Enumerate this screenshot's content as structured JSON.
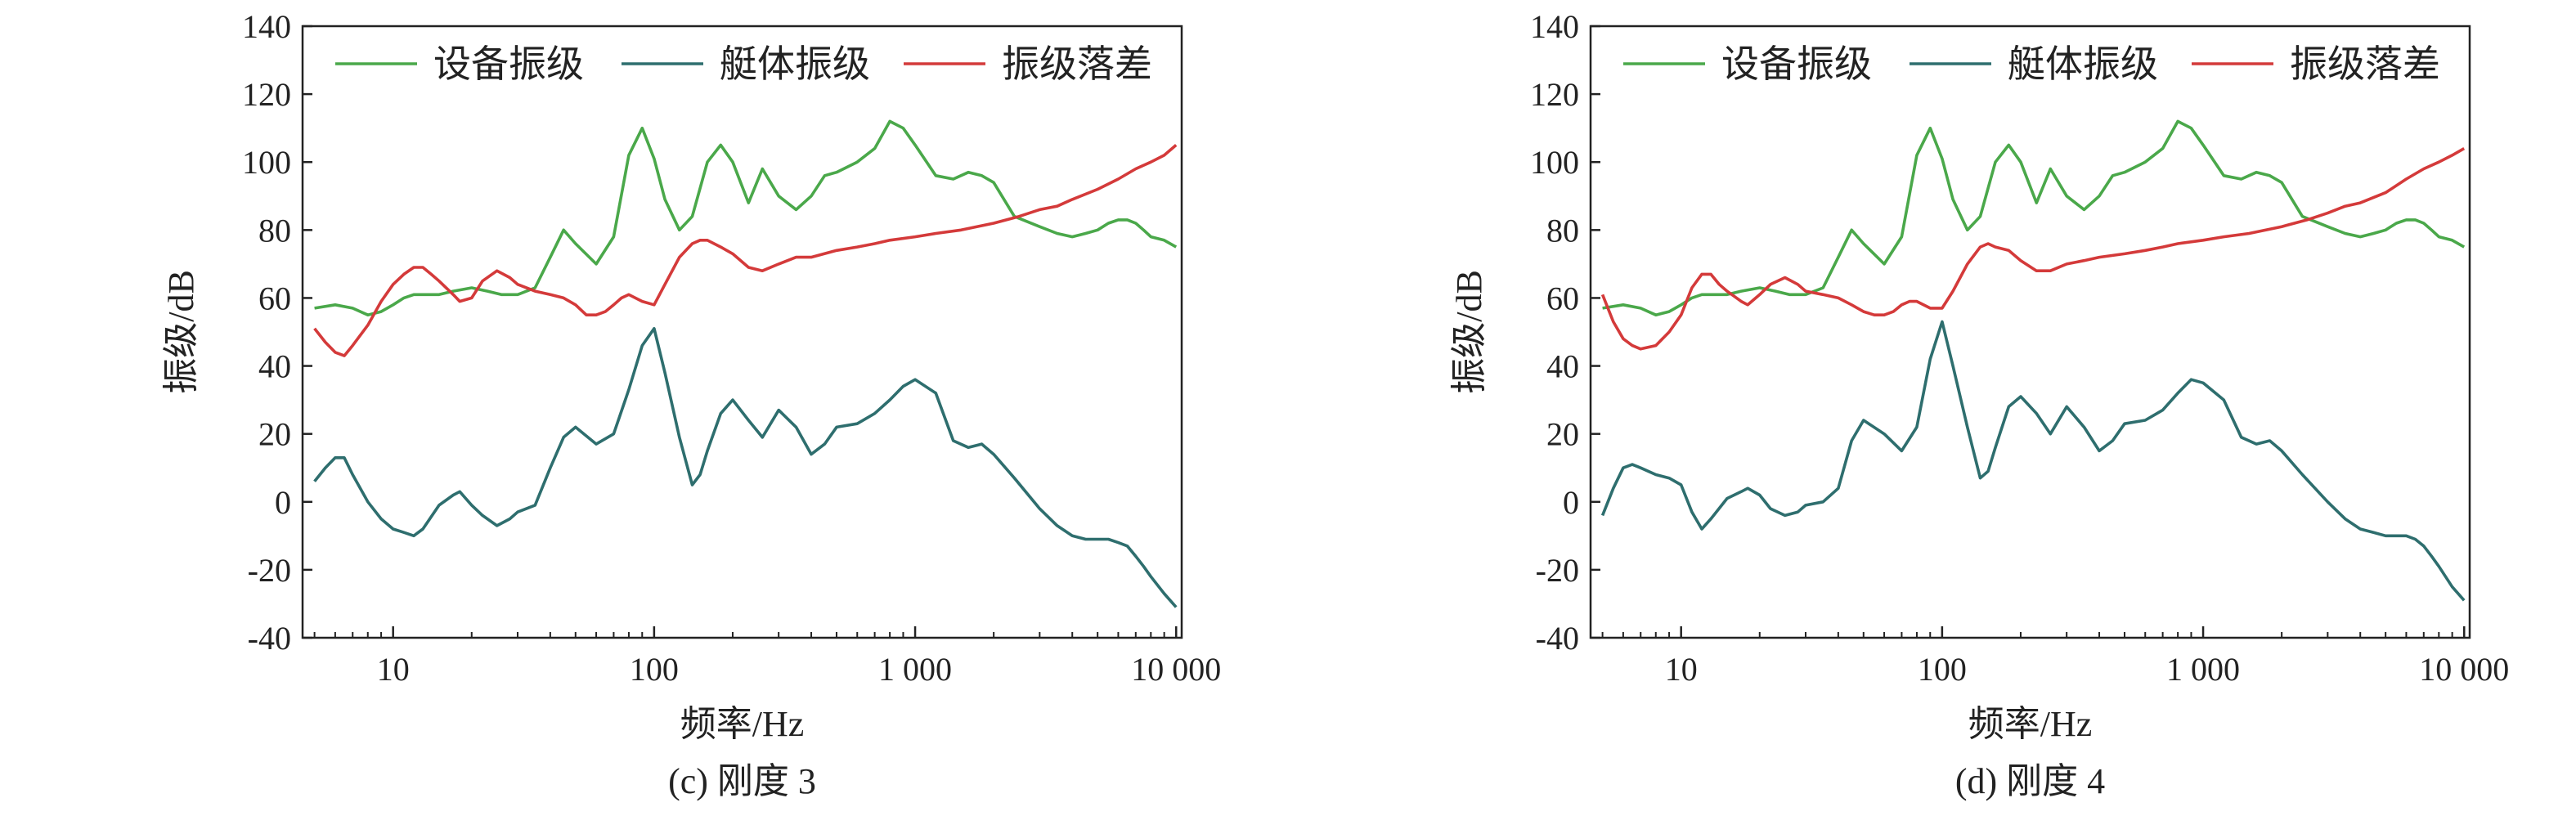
{
  "colors": {
    "equipment": "#4aa84a",
    "hull": "#2e6e6e",
    "drop": "#d43a3a",
    "axis": "#222222"
  },
  "chart_data": [
    {
      "type": "line",
      "caption": "(c) 刚度 3",
      "xlabel": "频率/Hz",
      "ylabel": "振级/dB",
      "xscale": "log",
      "xlim": [
        4.5,
        10500
      ],
      "ylim": [
        -40,
        140
      ],
      "xticks": [
        10,
        100,
        1000,
        10000
      ],
      "xtick_labels": [
        "10",
        "100",
        "1 000",
        "10 000"
      ],
      "yticks": [
        -40,
        -20,
        0,
        20,
        40,
        60,
        80,
        100,
        120,
        140
      ],
      "legend": {
        "position": "top",
        "entries": [
          "设备振级",
          "艇体振级",
          "振级落差"
        ]
      },
      "series": [
        {
          "name": "设备振级",
          "color_key": "equipment",
          "x": [
            5,
            6,
            7,
            8,
            9,
            10,
            11,
            12,
            13,
            15,
            17,
            20,
            23,
            26,
            30,
            35,
            40,
            45,
            50,
            60,
            70,
            80,
            90,
            100,
            110,
            125,
            140,
            160,
            180,
            200,
            230,
            260,
            300,
            350,
            400,
            450,
            500,
            600,
            700,
            800,
            900,
            1000,
            1200,
            1400,
            1600,
            1800,
            2000,
            2400,
            3000,
            3500,
            4000,
            4500,
            5000,
            5500,
            6000,
            6500,
            7000,
            7500,
            8000,
            9000,
            10000
          ],
          "y": [
            57,
            58,
            57,
            55,
            56,
            58,
            60,
            61,
            61,
            61,
            62,
            63,
            62,
            61,
            61,
            63,
            72,
            80,
            76,
            70,
            78,
            102,
            110,
            101,
            89,
            80,
            84,
            100,
            105,
            100,
            88,
            98,
            90,
            86,
            90,
            96,
            97,
            100,
            104,
            112,
            110,
            105,
            96,
            95,
            97,
            96,
            94,
            84,
            81,
            79,
            78,
            79,
            80,
            82,
            83,
            83,
            82,
            80,
            78,
            77,
            75
          ]
        },
        {
          "name": "艇体振级",
          "color_key": "hull",
          "x": [
            5,
            5.5,
            6,
            6.5,
            7,
            8,
            9,
            10,
            11,
            12,
            13,
            15,
            17,
            18,
            20,
            22,
            25,
            28,
            30,
            35,
            40,
            45,
            50,
            60,
            70,
            80,
            90,
            100,
            110,
            125,
            140,
            150,
            160,
            180,
            200,
            230,
            260,
            300,
            350,
            400,
            450,
            500,
            600,
            700,
            800,
            900,
            1000,
            1200,
            1400,
            1600,
            1800,
            2000,
            2400,
            3000,
            3500,
            4000,
            4500,
            5000,
            5500,
            6000,
            6500,
            7000,
            7500,
            8000,
            9000,
            10000
          ],
          "y": [
            6,
            10,
            13,
            13,
            8,
            0,
            -5,
            -8,
            -9,
            -10,
            -8,
            -1,
            2,
            3,
            -1,
            -4,
            -7,
            -5,
            -3,
            -1,
            10,
            19,
            22,
            17,
            20,
            33,
            46,
            51,
            38,
            19,
            5,
            8,
            15,
            26,
            30,
            24,
            19,
            27,
            22,
            14,
            17,
            22,
            23,
            26,
            30,
            34,
            36,
            32,
            18,
            16,
            17,
            14,
            7,
            -2,
            -7,
            -10,
            -11,
            -11,
            -11,
            -12,
            -13,
            -16,
            -19,
            -22,
            -27,
            -31
          ]
        },
        {
          "name": "振级落差",
          "color_key": "drop",
          "x": [
            5,
            5.5,
            6,
            6.5,
            7,
            8,
            9,
            10,
            11,
            12,
            13,
            14,
            15,
            17,
            18,
            20,
            22,
            25,
            28,
            30,
            35,
            40,
            45,
            50,
            55,
            60,
            65,
            70,
            75,
            80,
            90,
            100,
            110,
            125,
            140,
            150,
            160,
            180,
            200,
            230,
            260,
            300,
            350,
            400,
            500,
            600,
            700,
            800,
            1000,
            1200,
            1500,
            2000,
            2500,
            3000,
            3500,
            4000,
            5000,
            6000,
            7000,
            8000,
            9000,
            10000
          ],
          "y": [
            51,
            47,
            44,
            43,
            46,
            52,
            59,
            64,
            67,
            69,
            69,
            67,
            65,
            61,
            59,
            60,
            65,
            68,
            66,
            64,
            62,
            61,
            60,
            58,
            55,
            55,
            56,
            58,
            60,
            61,
            59,
            58,
            64,
            72,
            76,
            77,
            77,
            75,
            73,
            69,
            68,
            70,
            72,
            72,
            74,
            75,
            76,
            77,
            78,
            79,
            80,
            82,
            84,
            86,
            87,
            89,
            92,
            95,
            98,
            100,
            102,
            105
          ]
        }
      ]
    },
    {
      "type": "line",
      "caption": "(d) 刚度 4",
      "xlabel": "频率/Hz",
      "ylabel": "振级/dB",
      "xscale": "log",
      "xlim": [
        4.5,
        10500
      ],
      "ylim": [
        -40,
        140
      ],
      "xticks": [
        10,
        100,
        1000,
        10000
      ],
      "xtick_labels": [
        "10",
        "100",
        "1 000",
        "10 000"
      ],
      "yticks": [
        -40,
        -20,
        0,
        20,
        40,
        60,
        80,
        100,
        120,
        140
      ],
      "legend": {
        "position": "top",
        "entries": [
          "设备振级",
          "艇体振级",
          "振级落差"
        ]
      },
      "series": [
        {
          "name": "设备振级",
          "color_key": "equipment",
          "x": [
            5,
            6,
            7,
            8,
            9,
            10,
            11,
            12,
            13,
            15,
            17,
            20,
            23,
            26,
            30,
            35,
            40,
            45,
            50,
            60,
            70,
            80,
            90,
            100,
            110,
            125,
            140,
            160,
            180,
            200,
            230,
            260,
            300,
            350,
            400,
            450,
            500,
            600,
            700,
            800,
            900,
            1000,
            1200,
            1400,
            1600,
            1800,
            2000,
            2400,
            3000,
            3500,
            4000,
            4500,
            5000,
            5500,
            6000,
            6500,
            7000,
            7500,
            8000,
            9000,
            10000
          ],
          "y": [
            57,
            58,
            57,
            55,
            56,
            58,
            60,
            61,
            61,
            61,
            62,
            63,
            62,
            61,
            61,
            63,
            72,
            80,
            76,
            70,
            78,
            102,
            110,
            101,
            89,
            80,
            84,
            100,
            105,
            100,
            88,
            98,
            90,
            86,
            90,
            96,
            97,
            100,
            104,
            112,
            110,
            105,
            96,
            95,
            97,
            96,
            94,
            84,
            81,
            79,
            78,
            79,
            80,
            82,
            83,
            83,
            82,
            80,
            78,
            77,
            75
          ]
        },
        {
          "name": "艇体振级",
          "color_key": "hull",
          "x": [
            5,
            5.5,
            6,
            6.5,
            7,
            8,
            9,
            10,
            11,
            12,
            13,
            15,
            17,
            18,
            20,
            22,
            25,
            28,
            30,
            35,
            40,
            45,
            50,
            60,
            70,
            80,
            90,
            100,
            110,
            125,
            140,
            150,
            160,
            180,
            200,
            230,
            260,
            300,
            350,
            400,
            450,
            500,
            600,
            700,
            800,
            900,
            1000,
            1200,
            1400,
            1600,
            1800,
            2000,
            2400,
            3000,
            3500,
            4000,
            4500,
            5000,
            5500,
            6000,
            6500,
            7000,
            7500,
            8000,
            9000,
            10000
          ],
          "y": [
            -4,
            4,
            10,
            11,
            10,
            8,
            7,
            5,
            -3,
            -8,
            -5,
            1,
            3,
            4,
            2,
            -2,
            -4,
            -3,
            -1,
            0,
            4,
            18,
            24,
            20,
            15,
            22,
            42,
            53,
            40,
            22,
            7,
            9,
            16,
            28,
            31,
            26,
            20,
            28,
            22,
            15,
            18,
            23,
            24,
            27,
            32,
            36,
            35,
            30,
            19,
            17,
            18,
            15,
            8,
            0,
            -5,
            -8,
            -9,
            -10,
            -10,
            -10,
            -11,
            -13,
            -16,
            -19,
            -25,
            -29
          ]
        },
        {
          "name": "振级落差",
          "color_key": "drop",
          "x": [
            5,
            5.5,
            6,
            6.5,
            7,
            8,
            9,
            10,
            11,
            12,
            13,
            14,
            15,
            17,
            18,
            20,
            22,
            25,
            28,
            30,
            35,
            40,
            45,
            50,
            55,
            60,
            65,
            70,
            75,
            80,
            90,
            100,
            110,
            125,
            140,
            150,
            160,
            180,
            200,
            230,
            260,
            300,
            350,
            400,
            500,
            600,
            700,
            800,
            1000,
            1200,
            1500,
            2000,
            2500,
            3000,
            3500,
            4000,
            5000,
            6000,
            7000,
            8000,
            9000,
            10000
          ],
          "y": [
            61,
            53,
            48,
            46,
            45,
            46,
            50,
            55,
            63,
            67,
            67,
            64,
            62,
            59,
            58,
            61,
            64,
            66,
            64,
            62,
            61,
            60,
            58,
            56,
            55,
            55,
            56,
            58,
            59,
            59,
            57,
            57,
            62,
            70,
            75,
            76,
            75,
            74,
            71,
            68,
            68,
            70,
            71,
            72,
            73,
            74,
            75,
            76,
            77,
            78,
            79,
            81,
            83,
            85,
            87,
            88,
            91,
            95,
            98,
            100,
            102,
            104
          ]
        }
      ]
    }
  ]
}
